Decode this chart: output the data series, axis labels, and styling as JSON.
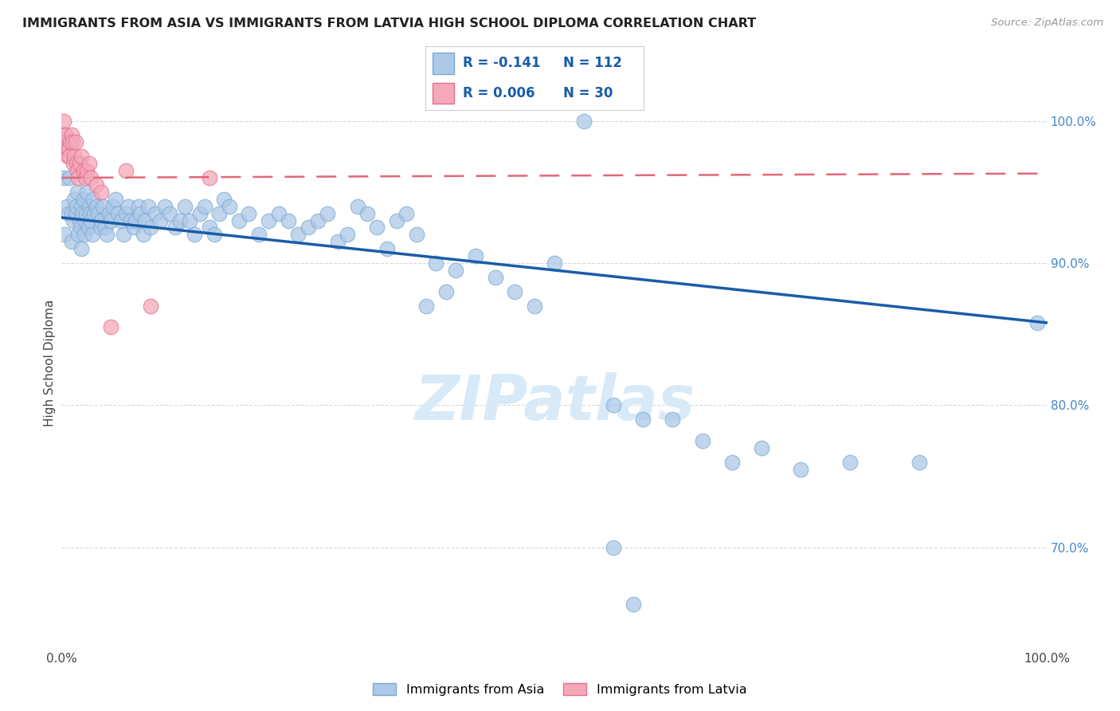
{
  "title": "IMMIGRANTS FROM ASIA VS IMMIGRANTS FROM LATVIA HIGH SCHOOL DIPLOMA CORRELATION CHART",
  "source": "Source: ZipAtlas.com",
  "ylabel": "High School Diploma",
  "x_min": 0.0,
  "x_max": 1.0,
  "y_min": 0.63,
  "y_max": 1.03,
  "y_ticks": [
    0.7,
    0.8,
    0.9,
    1.0
  ],
  "y_tick_labels_right": [
    "70.0%",
    "80.0%",
    "90.0%",
    "100.0%"
  ],
  "blue_color": "#adc8e8",
  "blue_edge_color": "#7aaad0",
  "pink_color": "#f4a8b8",
  "pink_edge_color": "#e07090",
  "blue_line_color": "#1a5ca8",
  "pink_line_color": "#e06878",
  "right_tick_color": "#4488cc",
  "watermark_text": "ZIPatlas",
  "watermark_color": "#d8eaf8",
  "grid_color": "#d8d8d8",
  "blue_trend_x0": 0.0,
  "blue_trend_x1": 1.0,
  "blue_trend_y0": 0.932,
  "blue_trend_y1": 0.858,
  "pink_trend_x0": 0.0,
  "pink_trend_x1": 1.0,
  "pink_trend_y0": 0.96,
  "pink_trend_y1": 0.963,
  "blue_x": [
    0.002,
    0.003,
    0.005,
    0.007,
    0.008,
    0.01,
    0.01,
    0.012,
    0.013,
    0.014,
    0.015,
    0.016,
    0.017,
    0.018,
    0.019,
    0.02,
    0.02,
    0.021,
    0.022,
    0.023,
    0.024,
    0.025,
    0.026,
    0.027,
    0.028,
    0.029,
    0.03,
    0.031,
    0.032,
    0.033,
    0.035,
    0.037,
    0.039,
    0.04,
    0.042,
    0.044,
    0.046,
    0.048,
    0.05,
    0.052,
    0.055,
    0.057,
    0.06,
    0.063,
    0.065,
    0.068,
    0.07,
    0.073,
    0.075,
    0.078,
    0.08,
    0.083,
    0.085,
    0.088,
    0.09,
    0.095,
    0.1,
    0.105,
    0.11,
    0.115,
    0.12,
    0.125,
    0.13,
    0.135,
    0.14,
    0.145,
    0.15,
    0.155,
    0.16,
    0.165,
    0.17,
    0.18,
    0.19,
    0.2,
    0.21,
    0.22,
    0.23,
    0.24,
    0.25,
    0.26,
    0.27,
    0.28,
    0.29,
    0.3,
    0.31,
    0.32,
    0.33,
    0.34,
    0.35,
    0.36,
    0.37,
    0.38,
    0.39,
    0.4,
    0.42,
    0.44,
    0.46,
    0.48,
    0.5,
    0.53,
    0.56,
    0.59,
    0.62,
    0.65,
    0.68,
    0.71,
    0.75,
    0.8,
    0.87,
    0.99,
    0.56,
    0.58
  ],
  "blue_y": [
    0.96,
    0.92,
    0.94,
    0.935,
    0.96,
    0.915,
    0.935,
    0.93,
    0.945,
    0.935,
    0.94,
    0.95,
    0.92,
    0.93,
    0.925,
    0.94,
    0.91,
    0.935,
    0.945,
    0.92,
    0.93,
    0.935,
    0.95,
    0.925,
    0.94,
    0.935,
    0.93,
    0.92,
    0.945,
    0.935,
    0.94,
    0.935,
    0.925,
    0.93,
    0.94,
    0.925,
    0.92,
    0.935,
    0.93,
    0.94,
    0.945,
    0.935,
    0.93,
    0.92,
    0.935,
    0.94,
    0.93,
    0.925,
    0.93,
    0.94,
    0.935,
    0.92,
    0.93,
    0.94,
    0.925,
    0.935,
    0.93,
    0.94,
    0.935,
    0.925,
    0.93,
    0.94,
    0.93,
    0.92,
    0.935,
    0.94,
    0.925,
    0.92,
    0.935,
    0.945,
    0.94,
    0.93,
    0.935,
    0.92,
    0.93,
    0.935,
    0.93,
    0.92,
    0.925,
    0.93,
    0.935,
    0.915,
    0.92,
    0.94,
    0.935,
    0.925,
    0.91,
    0.93,
    0.935,
    0.92,
    0.87,
    0.9,
    0.88,
    0.895,
    0.905,
    0.89,
    0.88,
    0.87,
    0.9,
    1.0,
    0.8,
    0.79,
    0.79,
    0.775,
    0.76,
    0.77,
    0.755,
    0.76,
    0.76,
    0.858,
    0.7,
    0.66
  ],
  "pink_x": [
    0.001,
    0.002,
    0.003,
    0.004,
    0.005,
    0.006,
    0.007,
    0.008,
    0.009,
    0.01,
    0.011,
    0.012,
    0.013,
    0.014,
    0.015,
    0.016,
    0.017,
    0.018,
    0.02,
    0.022,
    0.024,
    0.026,
    0.028,
    0.03,
    0.035,
    0.04,
    0.05,
    0.065,
    0.09,
    0.15
  ],
  "pink_y": [
    0.99,
    1.0,
    0.985,
    0.99,
    0.98,
    0.975,
    0.98,
    0.975,
    0.985,
    0.99,
    0.985,
    0.97,
    0.975,
    0.985,
    0.97,
    0.965,
    0.96,
    0.97,
    0.975,
    0.965,
    0.96,
    0.965,
    0.97,
    0.96,
    0.955,
    0.95,
    0.855,
    0.965,
    0.87,
    0.96
  ]
}
